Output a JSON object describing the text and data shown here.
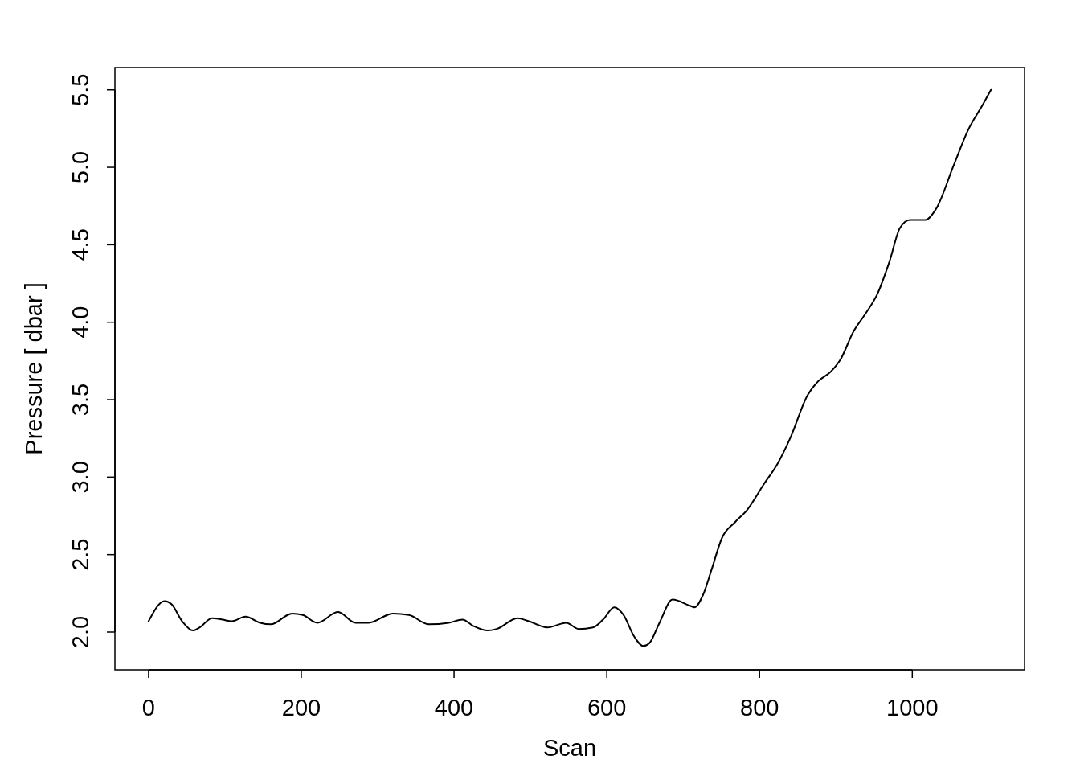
{
  "chart_data": {
    "type": "line",
    "xlabel": "Scan",
    "ylabel": "Pressure [ dbar ]",
    "xlim": [
      -44.1,
      1147
    ],
    "ylim": [
      1.756,
      5.644
    ],
    "xticks": [
      0,
      200,
      400,
      600,
      800,
      1000
    ],
    "yticks": [
      {
        "value": 2,
        "label": "2.0"
      },
      {
        "value": 2.5,
        "label": "2.5"
      },
      {
        "value": 3,
        "label": "3.0"
      },
      {
        "value": 3.5,
        "label": "3.5"
      },
      {
        "value": 4,
        "label": "4.0"
      },
      {
        "value": 4.5,
        "label": "4.5"
      },
      {
        "value": 5,
        "label": "5.0"
      },
      {
        "value": 5.5,
        "label": "5.5"
      }
    ],
    "grid": false,
    "marker": "none",
    "line_style": "solid",
    "series": [
      {
        "color": "#000000",
        "x": [
          0,
          21,
          30,
          44,
          58,
          67,
          83,
          97,
          109,
          127,
          146,
          160,
          188,
          202,
          221,
          248,
          271,
          288,
          320,
          341,
          367,
          393,
          411,
          425,
          444,
          456,
          483,
          498,
          522,
          547,
          563,
          582,
          595,
          610,
          622,
          636,
          648,
          656,
          669,
          686,
          709,
          715,
          726,
          737,
          751,
          768,
          784,
          805,
          824,
          840,
          863,
          877,
          893,
          906,
          923,
          938,
          955,
          970,
          984,
          997,
          1017,
          1031,
          1054,
          1073,
          1093,
          1103
        ],
        "values": [
          2.07,
          2.2,
          2.18,
          2.07,
          2.01,
          2.03,
          2.09,
          2.08,
          2.07,
          2.1,
          2.06,
          2.05,
          2.12,
          2.11,
          2.06,
          2.13,
          2.06,
          2.06,
          2.12,
          2.11,
          2.05,
          2.06,
          2.08,
          2.04,
          2.01,
          2.02,
          2.09,
          2.07,
          2.03,
          2.06,
          2.02,
          2.03,
          2.08,
          2.16,
          2.11,
          1.97,
          1.91,
          1.93,
          2.06,
          2.21,
          2.17,
          2.16,
          2.24,
          2.4,
          2.61,
          2.71,
          2.79,
          2.95,
          3.09,
          3.25,
          3.53,
          3.62,
          3.68,
          3.76,
          3.94,
          4.05,
          4.19,
          4.39,
          4.61,
          4.66,
          4.66,
          4.73,
          5.01,
          5.24,
          5.41,
          5.5
        ]
      }
    ]
  }
}
